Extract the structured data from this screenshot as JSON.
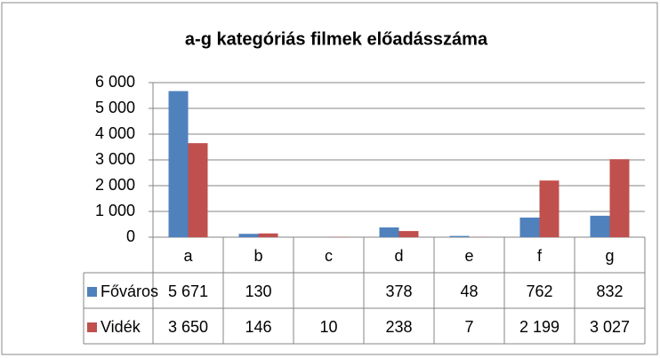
{
  "chart_data": {
    "type": "bar",
    "title": "a-g kategóriás filmek előadásszáma",
    "categories": [
      "a",
      "b",
      "c",
      "d",
      "e",
      "f",
      "g"
    ],
    "series": [
      {
        "name": "Főváros",
        "color": "#4f81bd",
        "values": [
          5671,
          130,
          null,
          378,
          48,
          762,
          832
        ],
        "value_labels": [
          "5 671",
          "130",
          null,
          "378",
          "48",
          "762",
          "832"
        ]
      },
      {
        "name": "Vidék",
        "color": "#c0504d",
        "values": [
          3650,
          146,
          10,
          238,
          7,
          2199,
          3027
        ],
        "value_labels": [
          "3 650",
          "146",
          "10",
          "238",
          "7",
          "2 199",
          "3 027"
        ]
      }
    ],
    "ylim": [
      0,
      6000
    ],
    "yticks": [
      0,
      {
        "value": 1000,
        "label": "1 000"
      },
      {
        "value": 2000,
        "label": "2 000"
      },
      {
        "value": 3000,
        "label": "3 000"
      },
      {
        "value": 4000,
        "label": "4 000"
      },
      {
        "value": 5000,
        "label": "5 000"
      },
      {
        "value": 6000,
        "label": "6 000"
      }
    ],
    "grid": true
  }
}
